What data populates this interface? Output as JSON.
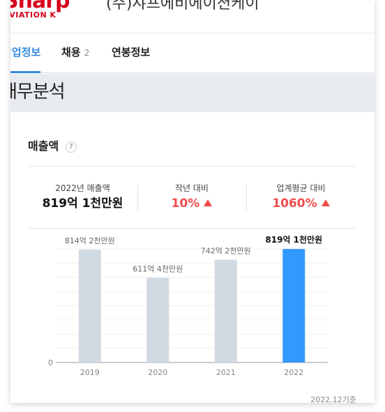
{
  "header": {
    "logo_text": "Sharp",
    "logo_subtext": "AVIATION K",
    "company_name": "(주)샤프에비에이션케이"
  },
  "tabs": [
    {
      "label": "기업정보",
      "active": true
    },
    {
      "label": "채용",
      "count": "2"
    },
    {
      "label": "연봉정보"
    }
  ],
  "section": {
    "title": "재무분석"
  },
  "sales": {
    "title": "매출액",
    "help_symbol": "?",
    "stats": [
      {
        "label": "2022년 매출액",
        "value": "819억 1천만원"
      },
      {
        "label": "작년 대비",
        "value": "10%"
      },
      {
        "label": "업계평균 대비",
        "value": "1060%"
      }
    ]
  },
  "chart_data": {
    "type": "bar",
    "categories": [
      "2019",
      "2020",
      "2021",
      "2022"
    ],
    "values": [
      814.2,
      611.4,
      742.2,
      819.1
    ],
    "labels": [
      "814억 2천만원",
      "611억 4천만원",
      "742억 2천만원",
      "819억 1천만원"
    ],
    "y_tick_labels": [
      "0"
    ],
    "ylim": [
      0,
      820
    ],
    "grid": true,
    "colors": {
      "default": "#d1dae2",
      "highlight": "#3399ff"
    },
    "highlight_index": 3
  },
  "footnote": "2022.12기준"
}
